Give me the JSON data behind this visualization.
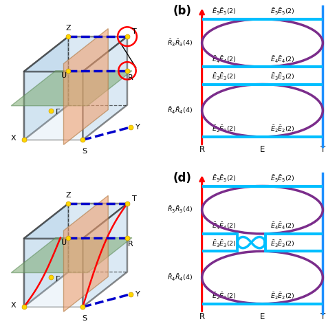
{
  "bg_color": "#ffffff",
  "purple_color": "#7B2D8B",
  "cyan_color": "#00BFFF",
  "red_color": "#FF0000",
  "blue_axis_color": "#1E90FF",
  "blue_line_color": "#0000CC",
  "yellow_dot": "#FFD700",
  "face_blue": "#B0D0E8",
  "face_green": "#7BA870",
  "face_orange": "#F0A070",
  "panel_b_label": "(b)",
  "panel_d_label": "(d)",
  "energy_labels_b": {
    "E5": "$\\bar{E}_5\\bar{E}_5(2)$",
    "E4": "$\\bar{E}_4\\bar{E}_4(2)$",
    "E3": "$\\bar{E}_3\\bar{E}_3(2)$",
    "E2": "$\\bar{E}_2\\bar{E}_2(2)$",
    "R3": "$\\bar{R}_3\\bar{R}_3(4)$",
    "R4": "$\\bar{R}_4\\bar{R}_4(4)$"
  }
}
